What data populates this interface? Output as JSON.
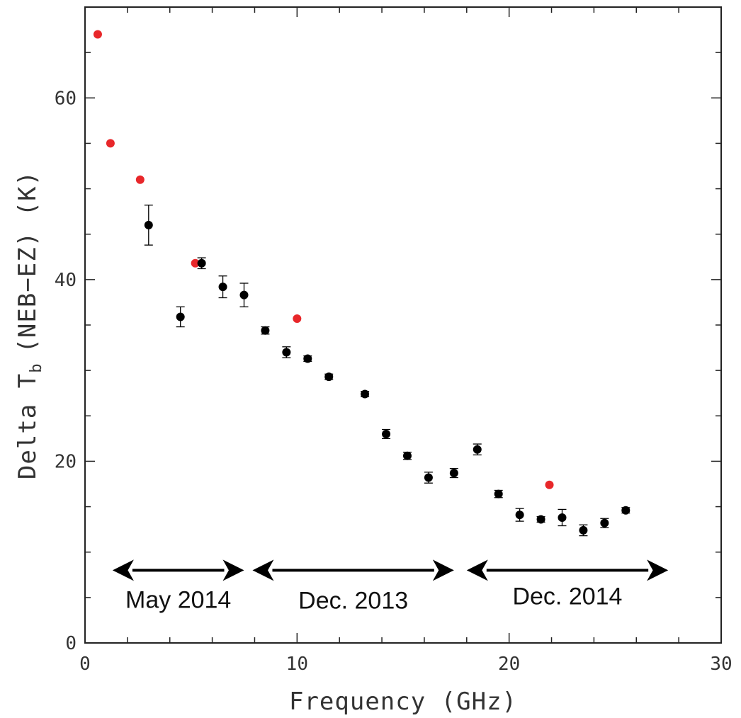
{
  "chart_data": {
    "type": "scatter",
    "xlabel": "Frequency (GHz)",
    "ylabel_main": "Delta T",
    "ylabel_sub": "b",
    "ylabel_rest": "(NEB−EZ) (K)",
    "xlim": [
      0,
      30
    ],
    "ylim": [
      0,
      70
    ],
    "x_ticks": [
      0,
      10,
      20,
      30
    ],
    "y_ticks": [
      0,
      20,
      40,
      60
    ],
    "grid": false,
    "series": [
      {
        "color": "#e8272a",
        "error_bars": false,
        "points": [
          {
            "x": 0.6,
            "y": 67.0
          },
          {
            "x": 1.2,
            "y": 55.0
          },
          {
            "x": 2.6,
            "y": 51.0
          },
          {
            "x": 5.2,
            "y": 41.8
          },
          {
            "x": 10.0,
            "y": 35.7
          },
          {
            "x": 21.9,
            "y": 17.4
          }
        ]
      },
      {
        "color": "#000000",
        "error_bars": true,
        "points": [
          {
            "x": 3.0,
            "y": 46.0,
            "err": 2.2
          },
          {
            "x": 4.5,
            "y": 35.9,
            "err": 1.1
          },
          {
            "x": 5.5,
            "y": 41.8,
            "err": 0.6
          },
          {
            "x": 6.5,
            "y": 39.2,
            "err": 1.2
          },
          {
            "x": 7.5,
            "y": 38.3,
            "err": 1.3
          },
          {
            "x": 8.5,
            "y": 34.4,
            "err": 0.4
          },
          {
            "x": 9.5,
            "y": 32.0,
            "err": 0.6
          },
          {
            "x": 10.5,
            "y": 31.3,
            "err": 0.3
          },
          {
            "x": 11.5,
            "y": 29.3,
            "err": 0.3
          },
          {
            "x": 13.2,
            "y": 27.4,
            "err": 0.3
          },
          {
            "x": 14.2,
            "y": 23.0,
            "err": 0.5
          },
          {
            "x": 15.2,
            "y": 20.6,
            "err": 0.4
          },
          {
            "x": 16.2,
            "y": 18.2,
            "err": 0.6
          },
          {
            "x": 17.4,
            "y": 18.7,
            "err": 0.5
          },
          {
            "x": 18.5,
            "y": 21.3,
            "err": 0.6
          },
          {
            "x": 19.5,
            "y": 16.4,
            "err": 0.4
          },
          {
            "x": 20.5,
            "y": 14.1,
            "err": 0.7
          },
          {
            "x": 21.5,
            "y": 13.6,
            "err": 0.3
          },
          {
            "x": 22.5,
            "y": 13.8,
            "err": 0.9
          },
          {
            "x": 23.5,
            "y": 12.4,
            "err": 0.6
          },
          {
            "x": 24.5,
            "y": 13.2,
            "err": 0.5
          },
          {
            "x": 25.5,
            "y": 14.6,
            "err": 0.3
          }
        ]
      }
    ],
    "annotations": [
      {
        "label": "May 2014",
        "x_start": 1.3,
        "x_end": 7.5,
        "y": 8.0,
        "label_y": 4.8
      },
      {
        "label": "Dec. 2013",
        "x_start": 7.9,
        "x_end": 17.4,
        "y": 8.0,
        "label_y": 4.7
      },
      {
        "label": "Dec. 2014",
        "x_start": 18.0,
        "x_end": 27.5,
        "y": 8.0,
        "label_y": 5.2
      }
    ]
  }
}
